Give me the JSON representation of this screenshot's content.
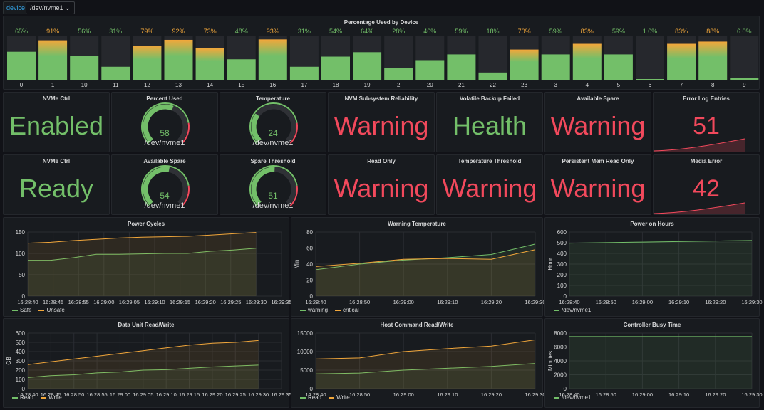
{
  "variable": {
    "label": "device",
    "value": "/dev/nvme1 ⌄"
  },
  "colors": {
    "green": "#73bf69",
    "orange": "#f2a73b",
    "red": "#f2495c",
    "panel": "#181b1f",
    "yellow": "#e6c45c"
  },
  "bargauge": {
    "title": "Percentage Used by Device",
    "items": [
      {
        "label": "0",
        "value": 65,
        "text": "65%"
      },
      {
        "label": "1",
        "value": 91,
        "text": "91%"
      },
      {
        "label": "10",
        "value": 56,
        "text": "56%"
      },
      {
        "label": "11",
        "value": 31,
        "text": "31%"
      },
      {
        "label": "12",
        "value": 79,
        "text": "79%"
      },
      {
        "label": "13",
        "value": 92,
        "text": "92%"
      },
      {
        "label": "14",
        "value": 73,
        "text": "73%"
      },
      {
        "label": "15",
        "value": 48,
        "text": "48%"
      },
      {
        "label": "16",
        "value": 93,
        "text": "93%"
      },
      {
        "label": "17",
        "value": 31,
        "text": "31%"
      },
      {
        "label": "18",
        "value": 54,
        "text": "54%"
      },
      {
        "label": "19",
        "value": 64,
        "text": "64%"
      },
      {
        "label": "2",
        "value": 28,
        "text": "28%"
      },
      {
        "label": "20",
        "value": 46,
        "text": "46%"
      },
      {
        "label": "21",
        "value": 59,
        "text": "59%"
      },
      {
        "label": "22",
        "value": 18,
        "text": "18%"
      },
      {
        "label": "23",
        "value": 70,
        "text": "70%"
      },
      {
        "label": "3",
        "value": 59,
        "text": "59%"
      },
      {
        "label": "4",
        "value": 83,
        "text": "83%"
      },
      {
        "label": "5",
        "value": 59,
        "text": "59%"
      },
      {
        "label": "6",
        "value": 1,
        "text": "1.0%"
      },
      {
        "label": "7",
        "value": 83,
        "text": "83%"
      },
      {
        "label": "8",
        "value": 88,
        "text": "88%"
      },
      {
        "label": "9",
        "value": 6,
        "text": "6.0%"
      }
    ]
  },
  "stats": {
    "nvme_ctrl_1": {
      "title": "NVMe Ctrl",
      "value": "Enabled"
    },
    "percent_used": {
      "title": "Percent Used",
      "value": "58",
      "name": "/dev/nvme1",
      "level": 58
    },
    "temperature": {
      "title": "Temperature",
      "value": "24",
      "name": "/dev/nvme1",
      "level": 30
    },
    "nvm_reliability": {
      "title": "NVM Subsystem Reliability",
      "value": "Warning"
    },
    "volatile_backup": {
      "title": "Volatile Backup Failed",
      "value": "Health"
    },
    "available_spare_1": {
      "title": "Available Spare",
      "value": "Warning"
    },
    "error_log": {
      "title": "Error Log Entries",
      "value": "51"
    },
    "nvme_ctrl_2": {
      "title": "NVMe Ctrl",
      "value": "Ready"
    },
    "available_spare_2": {
      "title": "Available Spare",
      "value": "54",
      "name": "/dev/nvme1",
      "level": 54
    },
    "spare_threshold": {
      "title": "Spare Threshold",
      "value": "51",
      "name": "/dev/nvme1",
      "level": 51
    },
    "read_only": {
      "title": "Read Only",
      "value": "Warning"
    },
    "temp_threshold": {
      "title": "Temperature Threshold",
      "value": "Warning"
    },
    "persistent_mem": {
      "title": "Persistent Mem Read Only",
      "value": "Warning"
    },
    "media_error": {
      "title": "Media Error",
      "value": "42"
    }
  },
  "chart_data": [
    {
      "id": "power_cycles",
      "type": "area",
      "title": "Power Cycles",
      "ylabel": "",
      "ylim": [
        0,
        150
      ],
      "yticks": [
        "0",
        "50",
        "100",
        "150"
      ],
      "xticks": [
        "16:28:40",
        "16:28:45",
        "16:28:55",
        "16:29:00",
        "16:29:05",
        "16:29:10",
        "16:29:15",
        "16:29:20",
        "16:29:25",
        "16:29:30",
        "16:29:35"
      ],
      "x": [
        0,
        5,
        10,
        15,
        20,
        25,
        30,
        35,
        40,
        45,
        50
      ],
      "series": [
        {
          "name": "Safe",
          "color": "#73bf69",
          "values": [
            84,
            84,
            90,
            98,
            98,
            99,
            100,
            100,
            105,
            108,
            112
          ]
        },
        {
          "name": "Unsafe",
          "color": "#f2a73b",
          "values": [
            124,
            126,
            130,
            133,
            136,
            138,
            139,
            140,
            143,
            146,
            149
          ]
        }
      ]
    },
    {
      "id": "warning_temp",
      "type": "area",
      "title": "Warning Temperature",
      "ylabel": "Min",
      "ylim": [
        0,
        80
      ],
      "yticks": [
        "0",
        "20",
        "40",
        "60",
        "80"
      ],
      "xticks": [
        "16:28:40",
        "16:28:50",
        "16:29:00",
        "16:29:10",
        "16:29:20",
        "16:29:30"
      ],
      "x": [
        0,
        10,
        20,
        30,
        40,
        50
      ],
      "series": [
        {
          "name": "warning",
          "color": "#73bf69",
          "values": [
            33,
            40,
            45,
            48,
            52,
            65
          ]
        },
        {
          "name": "critical",
          "color": "#f2a73b",
          "values": [
            37,
            41,
            46,
            47,
            46,
            58
          ]
        }
      ]
    },
    {
      "id": "power_on_hours",
      "type": "area",
      "title": "Power on Hours",
      "ylabel": "Hour",
      "ylim": [
        0,
        600
      ],
      "yticks": [
        "0",
        "100",
        "200",
        "300",
        "400",
        "500",
        "600"
      ],
      "xticks": [
        "16:28:40",
        "16:28:50",
        "16:29:00",
        "16:29:10",
        "16:29:20",
        "16:29:30"
      ],
      "x": [
        0,
        10,
        20,
        30,
        40,
        50
      ],
      "series": [
        {
          "name": "/dev/nvme1",
          "color": "#73bf69",
          "values": [
            496,
            501,
            506,
            511,
            516,
            521
          ]
        }
      ]
    },
    {
      "id": "data_unit",
      "type": "area",
      "title": "Data Unit Read/Write",
      "ylabel": "GB",
      "ylim": [
        0,
        600
      ],
      "yticks": [
        "0",
        "100",
        "200",
        "300",
        "400",
        "500",
        "600"
      ],
      "xticks": [
        "16:28:40",
        "16:28:45",
        "16:28:50",
        "16:28:55",
        "16:29:00",
        "16:29:05",
        "16:29:10",
        "16:29:15",
        "16:29:20",
        "16:29:25",
        "16:29:30",
        "16:29:35"
      ],
      "x": [
        0,
        5,
        10,
        15,
        20,
        25,
        30,
        35,
        40,
        45,
        50
      ],
      "series": [
        {
          "name": "Read",
          "color": "#73bf69",
          "values": [
            120,
            140,
            150,
            170,
            180,
            200,
            205,
            220,
            235,
            245,
            255
          ]
        },
        {
          "name": "Write",
          "color": "#f2a73b",
          "values": [
            260,
            290,
            320,
            350,
            380,
            410,
            440,
            470,
            490,
            500,
            520
          ]
        }
      ]
    },
    {
      "id": "host_cmd",
      "type": "area",
      "title": "Host Command Read/Write",
      "ylabel": "",
      "ylim": [
        0,
        15000
      ],
      "yticks": [
        "0",
        "5000",
        "10000",
        "15000"
      ],
      "xticks": [
        "16:28:40",
        "16:28:50",
        "16:29:00",
        "16:29:10",
        "16:29:20",
        "16:29:30"
      ],
      "x": [
        0,
        10,
        20,
        30,
        40,
        50
      ],
      "series": [
        {
          "name": "Read",
          "color": "#73bf69",
          "values": [
            4000,
            4200,
            5000,
            5500,
            6000,
            6800
          ]
        },
        {
          "name": "Write",
          "color": "#f2a73b",
          "values": [
            8000,
            8300,
            10000,
            10800,
            11500,
            13200
          ]
        }
      ]
    },
    {
      "id": "busy_time",
      "type": "area",
      "title": "Controller Busy Time",
      "ylabel": "Minutes",
      "ylim": [
        0,
        8000
      ],
      "yticks": [
        "0",
        "2000",
        "4000",
        "6000",
        "8000"
      ],
      "xticks": [
        "16:28:40",
        "16:28:50",
        "16:29:00",
        "16:29:10",
        "16:29:20",
        "16:29:30"
      ],
      "x": [
        0,
        10,
        20,
        30,
        40,
        50
      ],
      "series": [
        {
          "name": "/dev/nvme1",
          "color": "#73bf69",
          "values": [
            7500,
            7500,
            7500,
            7500,
            7500,
            7500
          ]
        }
      ]
    }
  ]
}
